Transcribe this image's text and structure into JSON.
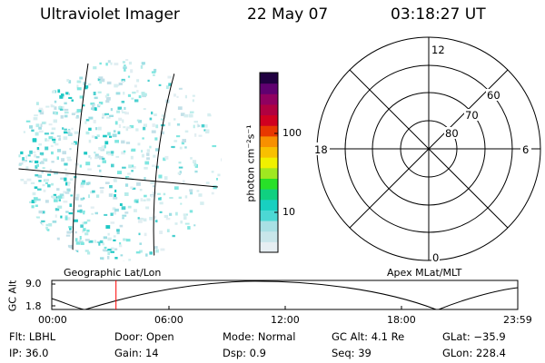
{
  "header": {
    "instrument": "Ultraviolet Imager",
    "date": "22 May 07",
    "time": "03:18:27 UT"
  },
  "imager": {
    "caption": "Geographic Lat/Lon",
    "pixel_colors": [
      "#7fe6e0",
      "#b6ecea",
      "#d6eef0",
      "#9fdfe4",
      "#4cd0d0",
      "#c2e0e8",
      "#e2eef2",
      "#1ec8c4"
    ]
  },
  "colorbar": {
    "unit_label": "photon cm⁻²s⁻¹",
    "ticks": [
      "100",
      "10"
    ],
    "colors": [
      "#e6eef2",
      "#c8e6ea",
      "#a8e0e4",
      "#4cd8d4",
      "#18d0c0",
      "#10d080",
      "#28e028",
      "#a0e820",
      "#f0f000",
      "#f8c000",
      "#f89000",
      "#e83800",
      "#d00020",
      "#b00040",
      "#900060",
      "#600070",
      "#200040"
    ]
  },
  "polar": {
    "caption": "Apex MLat/MLT",
    "mlt_labels": {
      "top": "12",
      "left": "18",
      "right": "6",
      "bottom": "0"
    },
    "lat_labels": [
      "60",
      "70",
      "80"
    ]
  },
  "altitude_plot": {
    "axis_label": "GC Alt",
    "y_ticks": [
      "9.0",
      "1.8"
    ],
    "x_ticks": [
      "00:00",
      "06:00",
      "12:00",
      "18:00",
      "23:59"
    ],
    "curve_color": "#000000",
    "marker_color": "#ff0000",
    "marker_time_hours": 3.308
  },
  "info": {
    "flt": "Flt: LBHL",
    "ip": "IP: 36.0",
    "door": "Door: Open",
    "gain": "Gain: 14",
    "mode": "Mode: Normal",
    "dsp": "Dsp:      0.9",
    "gcalt": "GC Alt: 4.1 Re",
    "seq": "Seq: 39",
    "glat": "GLat: −35.9",
    "glon": "GLon: 228.4"
  }
}
